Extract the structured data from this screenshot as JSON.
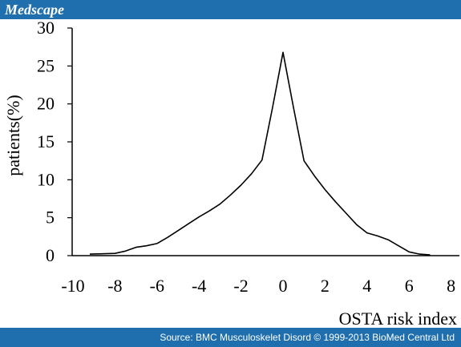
{
  "header": {
    "brand": "Medscape"
  },
  "footer": {
    "source": "Source: BMC Musculoskelet Disord © 1999-2013 BioMed Central Ltd"
  },
  "colors": {
    "bar": "#1f6fae",
    "line": "#000000"
  },
  "chart_data": {
    "type": "line",
    "title": "",
    "xlabel": "OSTA risk index",
    "ylabel": "patients(%)",
    "xlim": [
      -10,
      8
    ],
    "ylim": [
      0,
      30
    ],
    "xticks": [
      "-10",
      "-8",
      "-6",
      "-4",
      "-2",
      "0",
      "2",
      "4",
      "6",
      "8"
    ],
    "yticks": [
      "0",
      "5",
      "10",
      "15",
      "20",
      "25",
      "30"
    ],
    "grid": false,
    "legend": "none",
    "series": [
      {
        "x": [
          -9.2,
          -8,
          -7.5,
          -7,
          -6.5,
          -6,
          -5.5,
          -5,
          -4.5,
          -4,
          -3.5,
          -3,
          -2.5,
          -2,
          -1.5,
          -1,
          -0.5,
          0,
          0.5,
          1,
          1.5,
          2,
          2.5,
          3,
          3.5,
          4,
          4.5,
          5,
          5.5,
          6,
          6.5,
          7
        ],
        "y": [
          0.2,
          0.3,
          0.6,
          1.1,
          1.3,
          1.6,
          2.4,
          3.3,
          4.2,
          5.1,
          5.9,
          6.8,
          8.0,
          9.3,
          10.8,
          12.6,
          19.5,
          26.8,
          19.5,
          12.5,
          10.5,
          8.7,
          7.1,
          5.6,
          4.1,
          3.0,
          2.6,
          2.1,
          1.3,
          0.5,
          0.2,
          0.1
        ]
      }
    ]
  }
}
